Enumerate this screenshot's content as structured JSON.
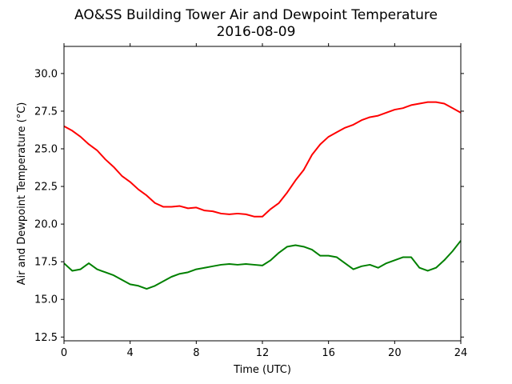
{
  "chart_data": {
    "type": "line",
    "title": "AO&SS Building Tower Air and Dewpoint Temperature",
    "subtitle": "2016-08-09",
    "xlabel": "Time (UTC)",
    "ylabel": "Air and Dewpoint Temperature (°C)",
    "xlim": [
      0,
      24
    ],
    "ylim": [
      12.25,
      31.8
    ],
    "xticks": [
      0,
      4,
      8,
      12,
      16,
      20,
      24
    ],
    "xtick_labels": [
      "0",
      "4",
      "8",
      "12",
      "16",
      "20",
      "24"
    ],
    "yticks": [
      12.5,
      15.0,
      17.5,
      20.0,
      22.5,
      25.0,
      27.5,
      30.0
    ],
    "ytick_labels": [
      "12.5",
      "15.0",
      "17.5",
      "20.0",
      "22.5",
      "25.0",
      "27.5",
      "30.0"
    ],
    "grid": false,
    "legend": false,
    "series": [
      {
        "color": "#ff0000",
        "x": [
          0,
          0.5,
          1,
          1.5,
          2,
          2.5,
          3,
          3.5,
          4,
          4.5,
          5,
          5.5,
          6,
          6.5,
          7,
          7.5,
          8,
          8.5,
          9,
          9.5,
          10,
          10.5,
          11,
          11.5,
          12,
          12.5,
          13,
          13.5,
          14,
          14.5,
          15,
          15.5,
          16,
          16.5,
          17,
          17.5,
          18,
          18.5,
          19,
          19.5,
          20,
          20.5,
          21,
          21.5,
          22,
          22.5,
          23,
          23.5,
          24
        ],
        "y": [
          26.5,
          26.2,
          25.8,
          25.3,
          24.9,
          24.3,
          23.8,
          23.2,
          22.8,
          22.3,
          21.9,
          21.4,
          21.15,
          21.15,
          21.2,
          21.05,
          21.1,
          20.9,
          20.85,
          20.7,
          20.65,
          20.7,
          20.65,
          20.5,
          20.5,
          21.0,
          21.4,
          22.1,
          22.9,
          23.6,
          24.6,
          25.3,
          25.8,
          26.1,
          26.4,
          26.6,
          26.9,
          27.1,
          27.2,
          27.4,
          27.6,
          27.7,
          27.9,
          28.0,
          28.1,
          28.1,
          28.0,
          27.7,
          27.4
        ]
      },
      {
        "color": "#008000",
        "x": [
          0,
          0.5,
          1,
          1.5,
          2,
          2.5,
          3,
          3.5,
          4,
          4.5,
          5,
          5.5,
          6,
          6.5,
          7,
          7.5,
          8,
          8.5,
          9,
          9.5,
          10,
          10.5,
          11,
          11.5,
          12,
          12.5,
          13,
          13.5,
          14,
          14.5,
          15,
          15.5,
          16,
          16.5,
          17,
          17.5,
          18,
          18.5,
          19,
          19.5,
          20,
          20.5,
          21,
          21.5,
          22,
          22.5,
          23,
          23.5,
          24
        ],
        "y": [
          17.4,
          16.9,
          17.0,
          17.4,
          17.0,
          16.8,
          16.6,
          16.3,
          16.0,
          15.9,
          15.7,
          15.9,
          16.2,
          16.5,
          16.7,
          16.8,
          17.0,
          17.1,
          17.2,
          17.3,
          17.35,
          17.3,
          17.35,
          17.3,
          17.25,
          17.6,
          18.1,
          18.5,
          18.6,
          18.5,
          18.3,
          17.9,
          17.9,
          17.8,
          17.4,
          17.0,
          17.2,
          17.3,
          17.1,
          17.4,
          17.6,
          17.8,
          17.8,
          17.1,
          16.9,
          17.1,
          17.6,
          18.2,
          18.9
        ]
      }
    ]
  }
}
